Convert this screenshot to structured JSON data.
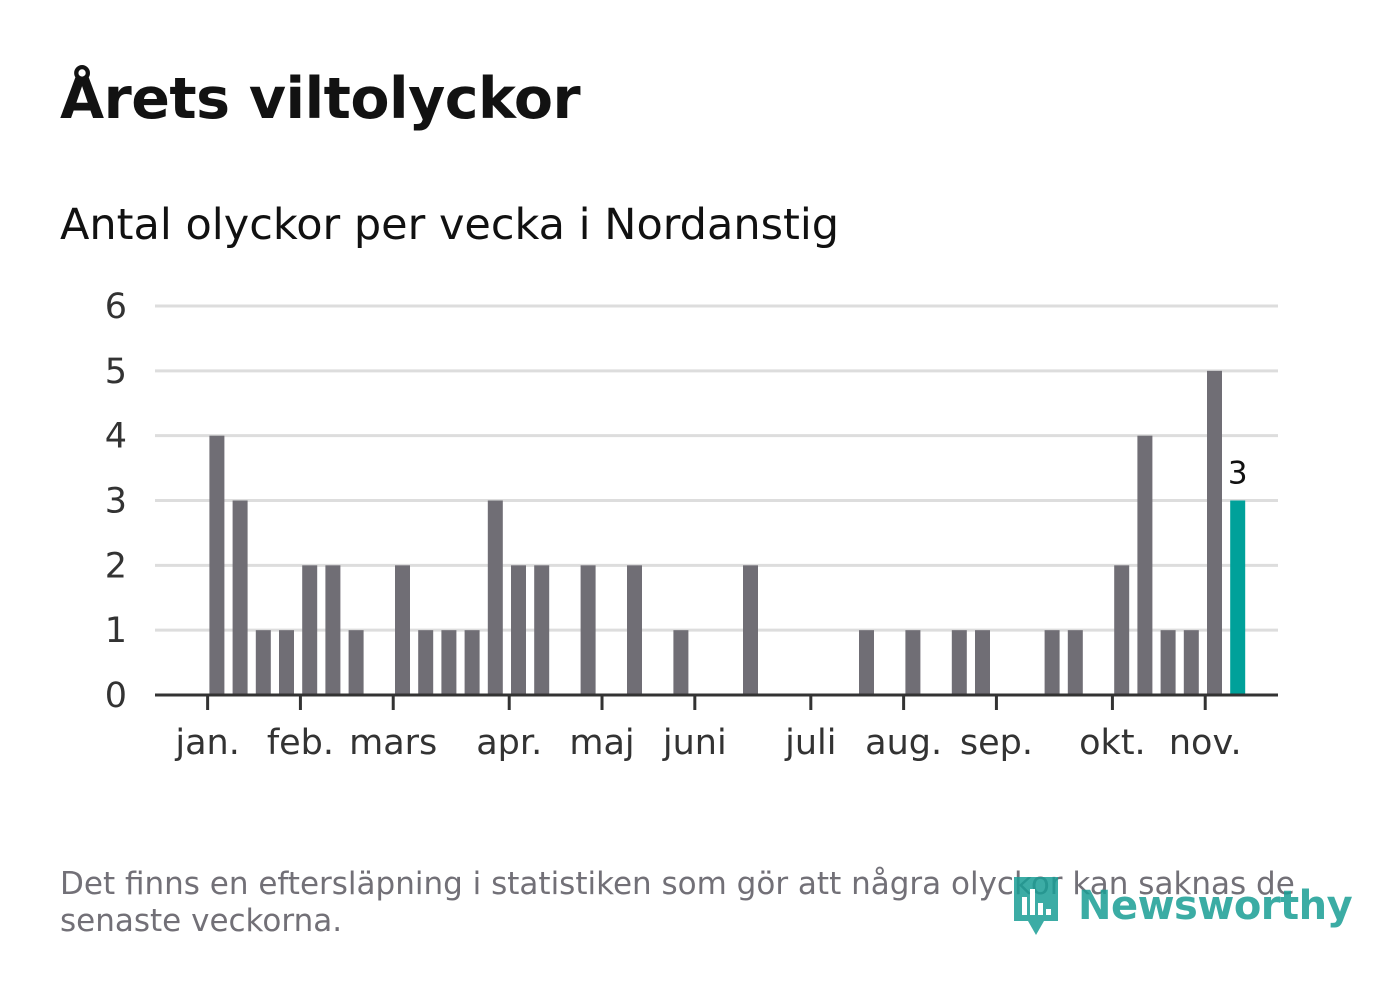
{
  "title": "Årets viltolyckor",
  "subtitle": "Antal olyckor per vecka i Nordanstig",
  "footnote": "Det finns en eftersläpning i statistiken som gör att några olyckor kan saknas de senaste veckorna.",
  "logo": {
    "text": "Newsworthy",
    "icon": "bar-chart-speech-icon"
  },
  "colors": {
    "bar": "#706e75",
    "highlight": "#00a19a",
    "grid": "#dddddd",
    "axis": "#333333"
  },
  "chart_data": {
    "type": "bar",
    "title": "Årets viltolyckor",
    "subtitle": "Antal olyckor per vecka i Nordanstig",
    "xlabel": "",
    "ylabel": "",
    "ylim": [
      0,
      6
    ],
    "yticks": [
      0,
      1,
      2,
      3,
      4,
      5,
      6
    ],
    "grid": true,
    "weeks": [
      1,
      2,
      3,
      4,
      5,
      6,
      7,
      8,
      9,
      10,
      11,
      12,
      13,
      14,
      15,
      16,
      17,
      18,
      19,
      20,
      21,
      22,
      23,
      24,
      25,
      26,
      27,
      28,
      29,
      30,
      31,
      32,
      33,
      34,
      35,
      36,
      37,
      38,
      39,
      40,
      41,
      42,
      43,
      44,
      45,
      46,
      47
    ],
    "values": [
      0,
      0,
      4,
      3,
      1,
      1,
      2,
      2,
      1,
      0,
      2,
      1,
      1,
      1,
      3,
      2,
      2,
      0,
      2,
      0,
      2,
      0,
      1,
      0,
      0,
      2,
      0,
      0,
      0,
      0,
      1,
      0,
      1,
      0,
      1,
      1,
      0,
      0,
      1,
      1,
      0,
      2,
      4,
      1,
      1,
      5,
      3
    ],
    "highlight_index": 46,
    "highlight_label": "3",
    "month_ticks": [
      {
        "label": "jan.",
        "week": 2.6
      },
      {
        "label": "feb.",
        "week": 6.6
      },
      {
        "label": "mars",
        "week": 10.6
      },
      {
        "label": "apr.",
        "week": 15.6
      },
      {
        "label": "maj",
        "week": 19.6
      },
      {
        "label": "juni",
        "week": 23.6
      },
      {
        "label": "juli",
        "week": 28.6
      },
      {
        "label": "aug.",
        "week": 32.6
      },
      {
        "label": "sep.",
        "week": 36.6
      },
      {
        "label": "okt.",
        "week": 41.6
      },
      {
        "label": "nov.",
        "week": 45.6
      }
    ]
  }
}
